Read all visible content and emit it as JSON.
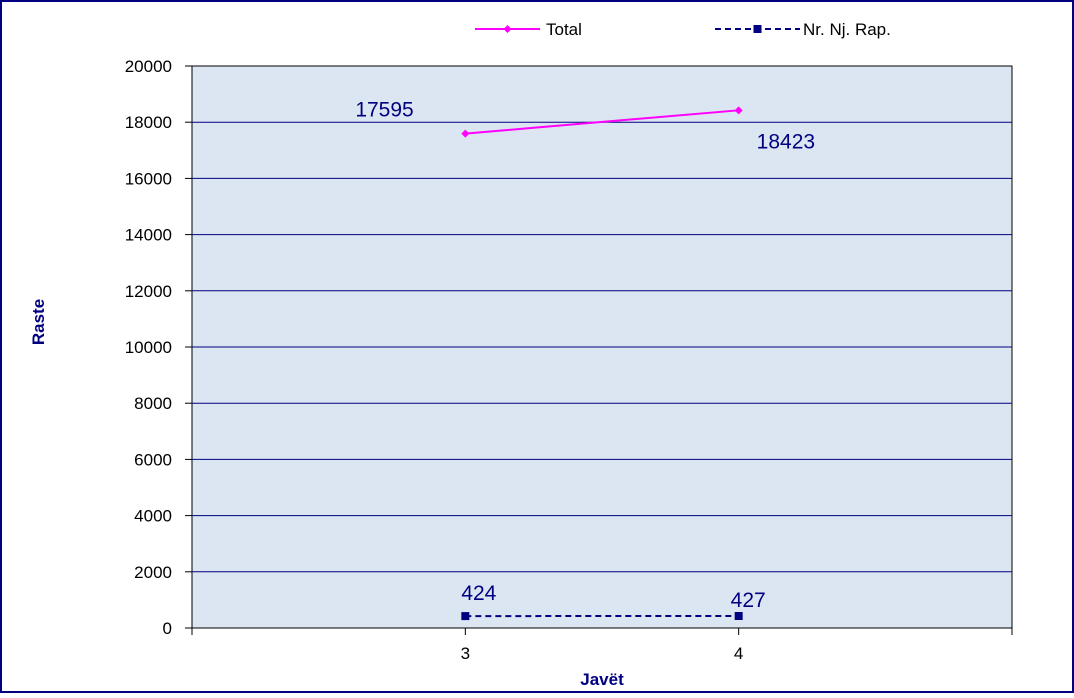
{
  "chart_data": {
    "type": "line",
    "categories": [
      "3",
      "4"
    ],
    "series": [
      {
        "name": "Total",
        "values": [
          17595,
          18423
        ],
        "color": "#ff00ff",
        "marker": "diamond",
        "line_style": "solid"
      },
      {
        "name": "Nr. Nj. Rap.",
        "values": [
          424,
          427
        ],
        "color": "#000080",
        "marker": "square",
        "line_style": "dashed"
      }
    ],
    "title": "",
    "xlabel": "Javët",
    "ylabel": "Raste",
    "ylim": [
      0,
      20000
    ],
    "yticks": [
      0,
      2000,
      4000,
      6000,
      8000,
      10000,
      12000,
      14000,
      16000,
      18000,
      20000
    ],
    "grid": true,
    "legend_position": "top",
    "plot_background": "#dce6f2",
    "gridline_color": "#000080",
    "label_color": "#000080"
  }
}
